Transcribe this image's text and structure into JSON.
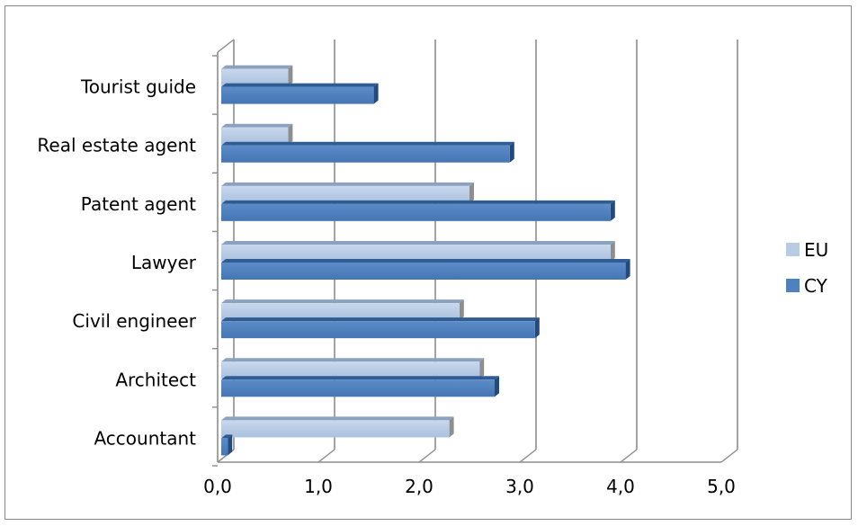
{
  "chart_data": {
    "type": "bar",
    "orientation": "horizontal",
    "categories": [
      "Tourist guide",
      "Real estate agent",
      "Patent agent",
      "Lawyer",
      "Civil engineer",
      "Architect",
      "Accountant"
    ],
    "series": [
      {
        "name": "EU",
        "color": "#b8cce4",
        "values": [
          0.7,
          0.7,
          2.5,
          3.9,
          2.4,
          2.6,
          2.3
        ]
      },
      {
        "name": "CY",
        "color": "#4f81bd",
        "values": [
          1.55,
          2.9,
          3.9,
          4.05,
          3.15,
          2.75,
          0.1
        ]
      }
    ],
    "x_ticks": [
      "0,0",
      "1,0",
      "2,0",
      "3,0",
      "4,0",
      "5,0"
    ],
    "xlim": [
      0,
      5
    ],
    "grid": true,
    "legend_position": "right",
    "title": "",
    "xlabel": "",
    "ylabel": ""
  }
}
